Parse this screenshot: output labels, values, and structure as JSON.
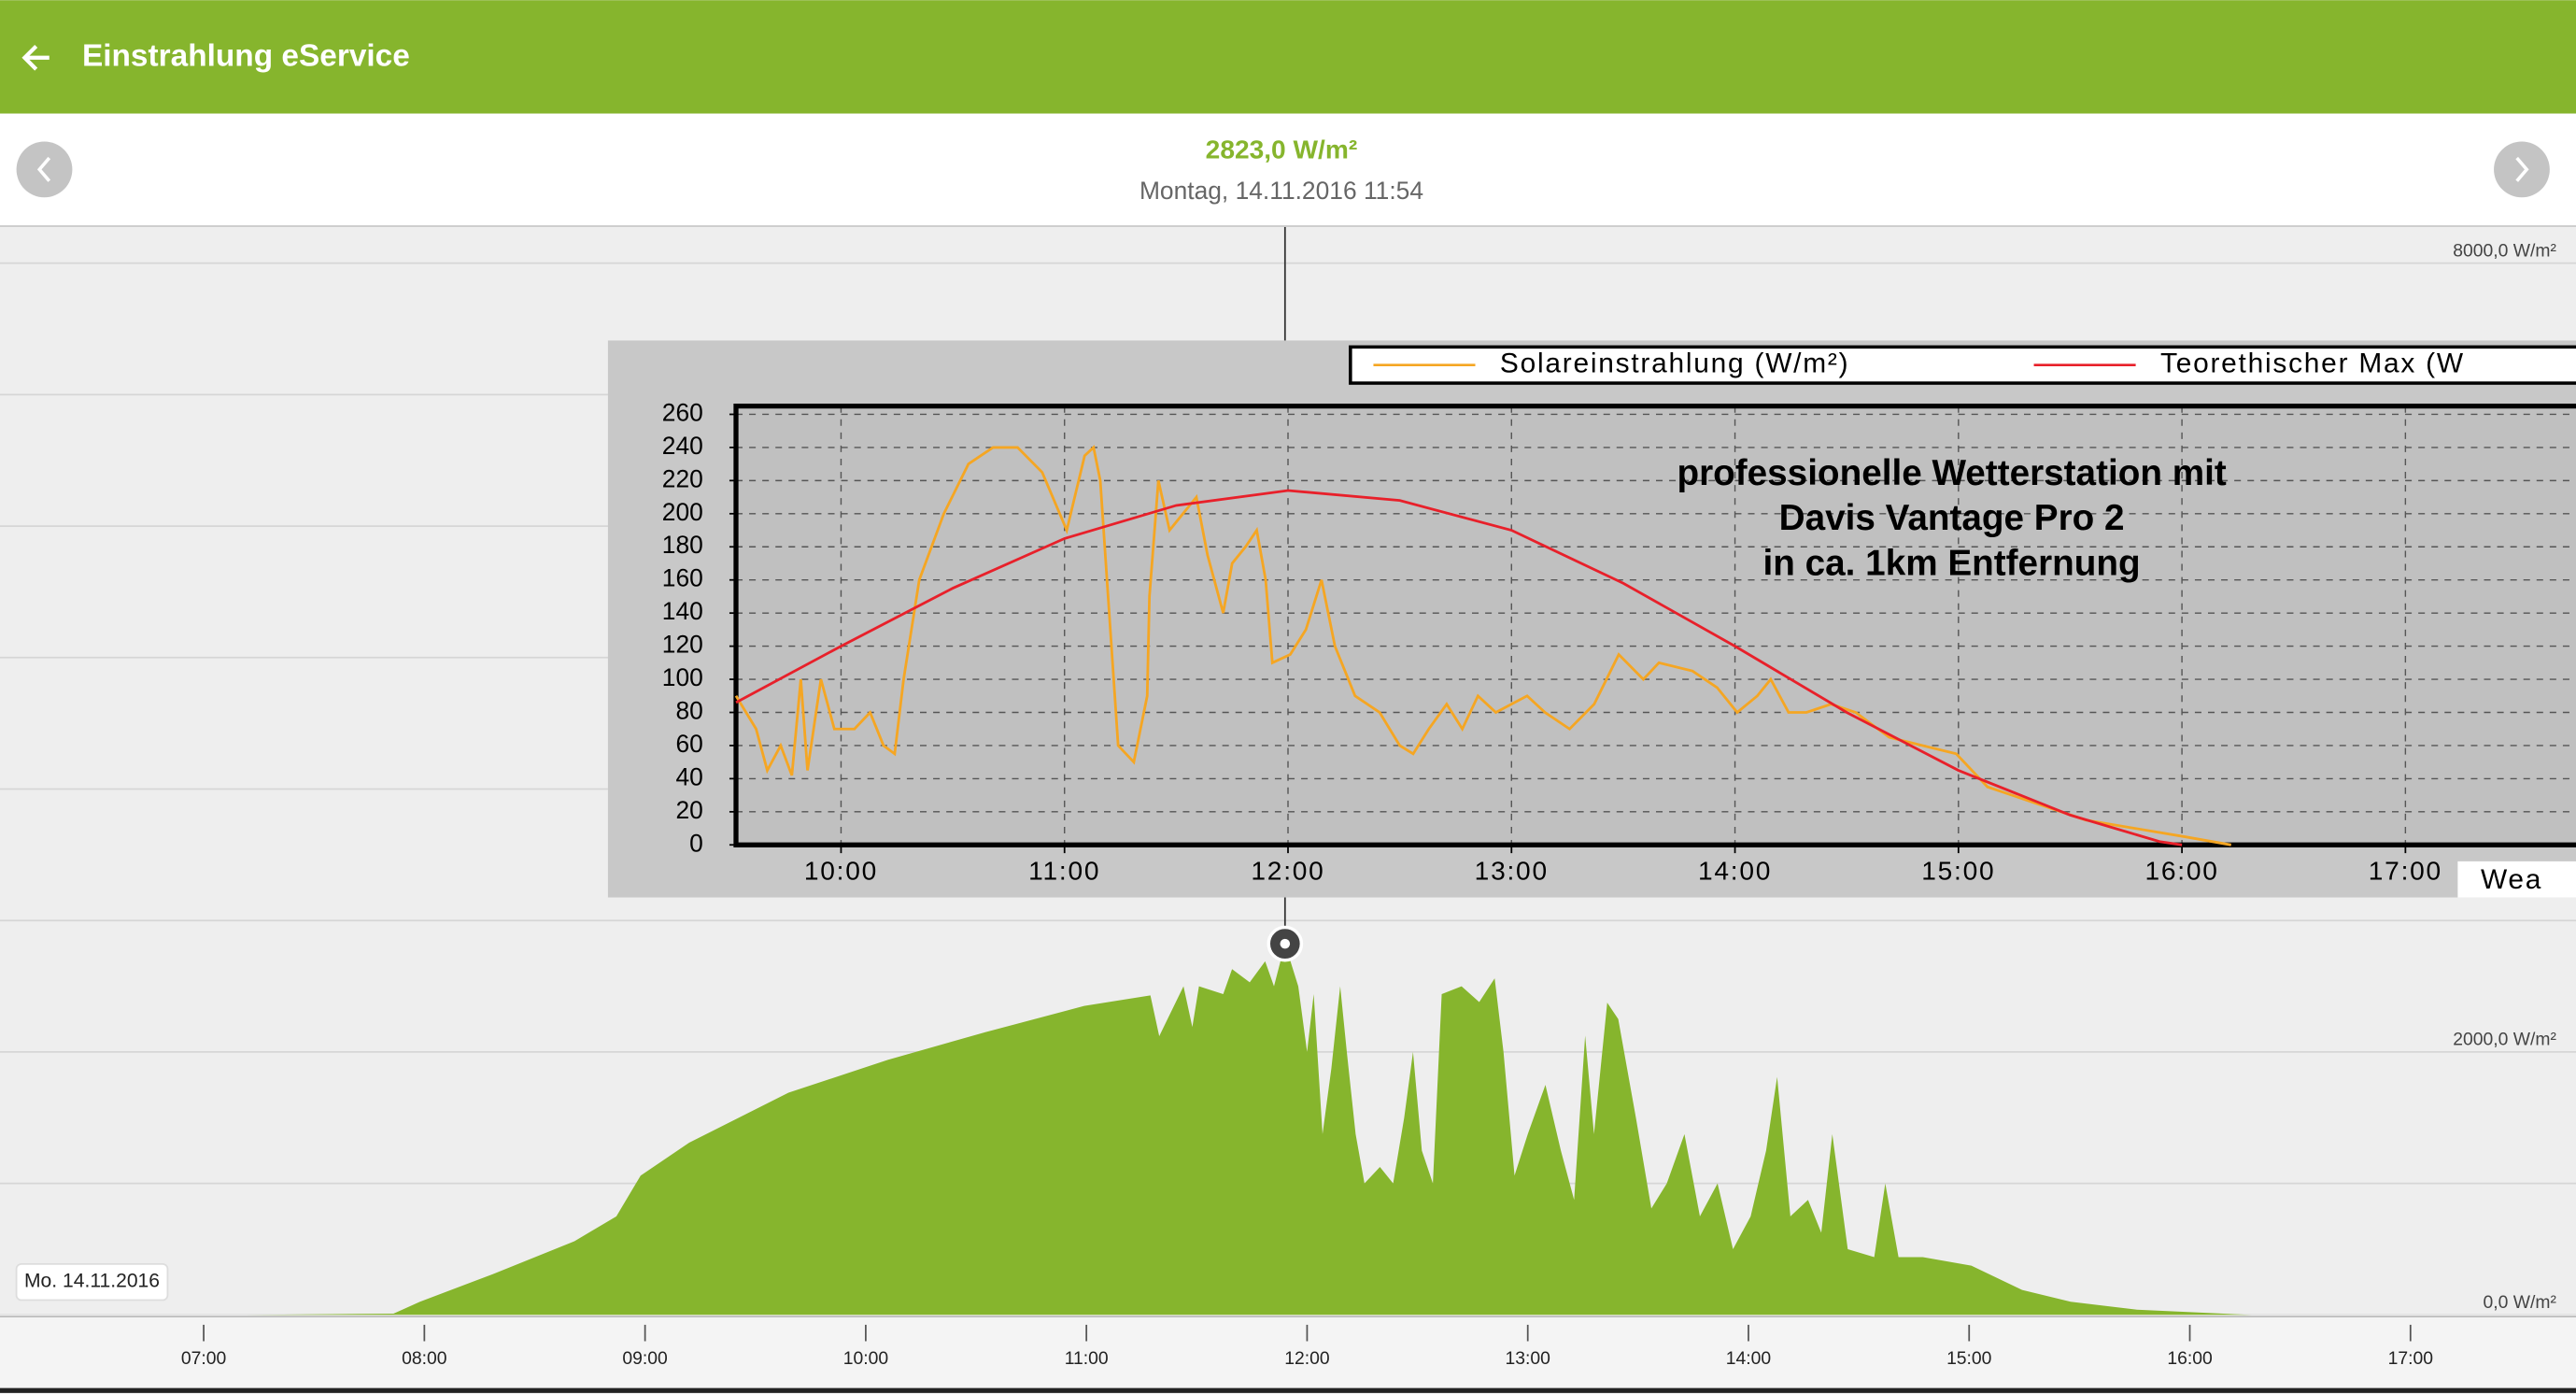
{
  "header": {
    "title": "Einstrahlung eService"
  },
  "summary": {
    "value": "2823,0 W/m²",
    "datetime": "Montag, 14.11.2016 11:54"
  },
  "date_badge": "Mo. 14.11.2016",
  "chart_data": [
    {
      "type": "area",
      "color": "#86b52d",
      "grid": true,
      "xlim": [
        6.077,
        17.75
      ],
      "ylim": [
        0,
        8000
      ],
      "xticks": [
        {
          "value": 7,
          "label": "07:00"
        },
        {
          "value": 8,
          "label": "08:00"
        },
        {
          "value": 9,
          "label": "09:00"
        },
        {
          "value": 10,
          "label": "10:00"
        },
        {
          "value": 11,
          "label": "11:00"
        },
        {
          "value": 12,
          "label": "12:00"
        },
        {
          "value": 13,
          "label": "13:00"
        },
        {
          "value": 14,
          "label": "14:00"
        },
        {
          "value": 15,
          "label": "15:00"
        },
        {
          "value": 16,
          "label": "16:00"
        },
        {
          "value": 17,
          "label": "17:00"
        }
      ],
      "yticks": [
        {
          "value": 0,
          "label": "0,0 W/m²"
        },
        {
          "value": 1000,
          "label": null
        },
        {
          "value": 2000,
          "label": "2000,0 W/m²"
        },
        {
          "value": 3000,
          "label": null
        },
        {
          "value": 4000,
          "label": null
        },
        {
          "value": 5000,
          "label": null
        },
        {
          "value": 6000,
          "label": null
        },
        {
          "value": 7000,
          "label": null
        },
        {
          "value": 8000,
          "label": "8000,0 W/m²"
        }
      ],
      "x": [
        7.19,
        7.86,
        7.98,
        8.31,
        8.68,
        8.87,
        8.98,
        9.2,
        9.65,
        10.1,
        10.54,
        10.99,
        11.29,
        11.33,
        11.44,
        11.48,
        11.51,
        11.62,
        11.66,
        11.74,
        11.81,
        11.85,
        11.9,
        11.96,
        12.0,
        12.03,
        12.07,
        12.11,
        12.15,
        12.18,
        12.22,
        12.26,
        12.33,
        12.39,
        12.44,
        12.48,
        12.52,
        12.57,
        12.61,
        12.7,
        12.78,
        12.85,
        12.89,
        12.94,
        13.0,
        13.08,
        13.15,
        13.21,
        13.26,
        13.3,
        13.36,
        13.41,
        13.49,
        13.56,
        13.63,
        13.71,
        13.78,
        13.86,
        13.93,
        14.01,
        14.08,
        14.13,
        14.19,
        14.27,
        14.33,
        14.38,
        14.45,
        14.57,
        14.62,
        14.68,
        14.79,
        15.01,
        15.24,
        15.46,
        15.76,
        16.28
      ],
      "series": [
        {
          "values": [
            0,
            10,
            100,
            310,
            560,
            750,
            1060,
            1310,
            1690,
            1940,
            2150,
            2350,
            2430,
            2120,
            2500,
            2190,
            2500,
            2440,
            2630,
            2530,
            2690,
            2500,
            2823,
            2500,
            2000,
            2440,
            1375,
            1875,
            2500,
            2000,
            1375,
            1000,
            1125,
            1000,
            1500,
            2000,
            1250,
            1000,
            2440,
            2500,
            2380,
            2560,
            2000,
            1060,
            1375,
            1750,
            1250,
            875,
            2125,
            1375,
            2375,
            2250,
            1500,
            810,
            1000,
            1375,
            750,
            1000,
            500,
            750,
            1250,
            1810,
            750,
            875,
            625,
            1375,
            500,
            440,
            1000,
            440,
            440,
            375,
            190,
            100,
            40,
            0
          ]
        }
      ]
    },
    {
      "type": "line",
      "grid": true,
      "xlim": [
        9.53,
        17.8
      ],
      "ylim": [
        0,
        260
      ],
      "xticks": [
        {
          "value": 10,
          "label": "10:00"
        },
        {
          "value": 11,
          "label": "11:00"
        },
        {
          "value": 12,
          "label": "12:00"
        },
        {
          "value": 13,
          "label": "13:00"
        },
        {
          "value": 14,
          "label": "14:00"
        },
        {
          "value": 15,
          "label": "15:00"
        },
        {
          "value": 16,
          "label": "16:00"
        },
        {
          "value": 17,
          "label": "17:00"
        }
      ],
      "yticks": [
        0,
        20,
        40,
        60,
        80,
        100,
        120,
        140,
        160,
        180,
        200,
        220,
        240,
        260
      ],
      "annotation": [
        "professionelle Wetterstation mit",
        "Davis Vantage Pro 2",
        "in ca. 1km Entfernung"
      ],
      "footer_label": "Wea",
      "series": [
        {
          "name": "Solareinstrahlung (W/m²)",
          "color": "#f5a623",
          "x": [
            9.53,
            9.62,
            9.67,
            9.73,
            9.78,
            9.82,
            9.85,
            9.91,
            9.97,
            10.06,
            10.13,
            10.19,
            10.24,
            10.28,
            10.35,
            10.46,
            10.57,
            10.68,
            10.79,
            10.9,
            11.01,
            11.09,
            11.13,
            11.16,
            11.2,
            11.24,
            11.31,
            11.37,
            11.38,
            11.42,
            11.47,
            11.53,
            11.59,
            11.64,
            11.71,
            11.75,
            11.81,
            11.86,
            11.9,
            11.93,
            12.01,
            12.08,
            12.15,
            12.21,
            12.3,
            12.41,
            12.5,
            12.56,
            12.63,
            12.71,
            12.78,
            12.85,
            12.93,
            13.0,
            13.07,
            13.15,
            13.26,
            13.37,
            13.48,
            13.59,
            13.66,
            13.81,
            13.92,
            14.01,
            14.1,
            14.16,
            14.24,
            14.32,
            14.43,
            14.54,
            14.69,
            14.84,
            14.99,
            15.13,
            15.35,
            15.57,
            15.79,
            16.01,
            16.22
          ],
          "values": [
            90,
            70,
            45,
            60,
            42,
            100,
            45,
            100,
            70,
            70,
            80,
            60,
            55,
            100,
            160,
            200,
            230,
            240,
            240,
            225,
            190,
            235,
            240,
            220,
            140,
            60,
            50,
            90,
            150,
            220,
            190,
            200,
            210,
            175,
            140,
            170,
            180,
            190,
            160,
            110,
            115,
            130,
            160,
            120,
            90,
            80,
            60,
            55,
            70,
            85,
            70,
            90,
            80,
            85,
            90,
            80,
            70,
            85,
            115,
            100,
            110,
            105,
            95,
            80,
            90,
            100,
            80,
            80,
            85,
            80,
            65,
            60,
            55,
            35,
            25,
            15,
            10,
            5,
            0
          ]
        },
        {
          "name": "Teorethischer Max (W",
          "color": "#e8202a",
          "x": [
            9.53,
            10,
            10.5,
            11,
            11.5,
            12,
            12.5,
            13,
            13.5,
            14,
            14.5,
            15,
            15.5,
            15.9,
            16
          ],
          "values": [
            86,
            120,
            155,
            185,
            205,
            214,
            208,
            190,
            158,
            120,
            80,
            45,
            18,
            2,
            0
          ]
        }
      ]
    }
  ]
}
